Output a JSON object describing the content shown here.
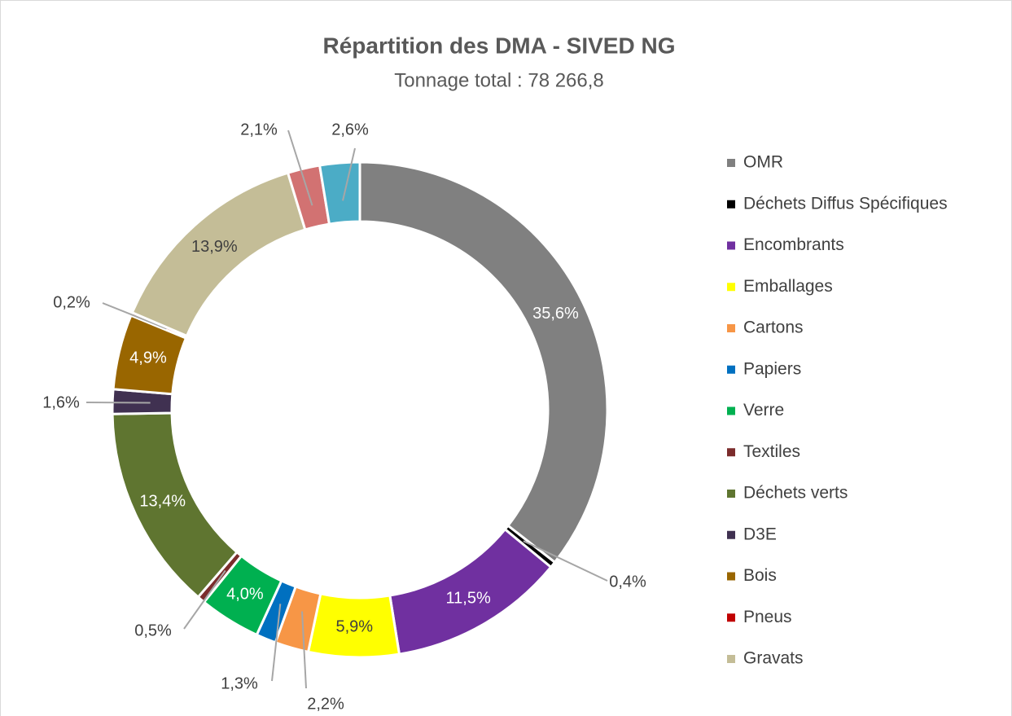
{
  "chart_data": {
    "type": "donut",
    "title": "Répartition des DMA - SIVED NG",
    "subtitle": "Tonnage total : 78 266,8",
    "categories": [
      "OMR",
      "Déchets Diffus Spécifiques",
      "Encombrants",
      "Emballages",
      "Cartons",
      "Papiers",
      "Verre",
      "Textiles",
      "Déchets verts",
      "D3E",
      "Bois",
      "Pneus",
      "Gravats",
      null,
      null
    ],
    "values": [
      35.6,
      0.4,
      11.5,
      5.9,
      2.2,
      1.3,
      4.0,
      0.5,
      13.4,
      1.6,
      4.9,
      0.2,
      13.9,
      2.1,
      2.6
    ],
    "value_labels": [
      "35,6%",
      "0,4%",
      "11,5%",
      "5,9%",
      "2,2%",
      "1,3%",
      "4,0%",
      "0,5%",
      "13,4%",
      "1,6%",
      "4,9%",
      "0,2%",
      "13,9%",
      "2,1%",
      "2,6%"
    ],
    "colors": [
      "#808080",
      "#000000",
      "#7030a0",
      "#ffff00",
      "#f79646",
      "#0070c0",
      "#00b050",
      "#7b2c2c",
      "#5f7530",
      "#403151",
      "#996600",
      "#c00000",
      "#c4bd97",
      "#d27272",
      "#4bacc6"
    ],
    "legend": "right"
  }
}
